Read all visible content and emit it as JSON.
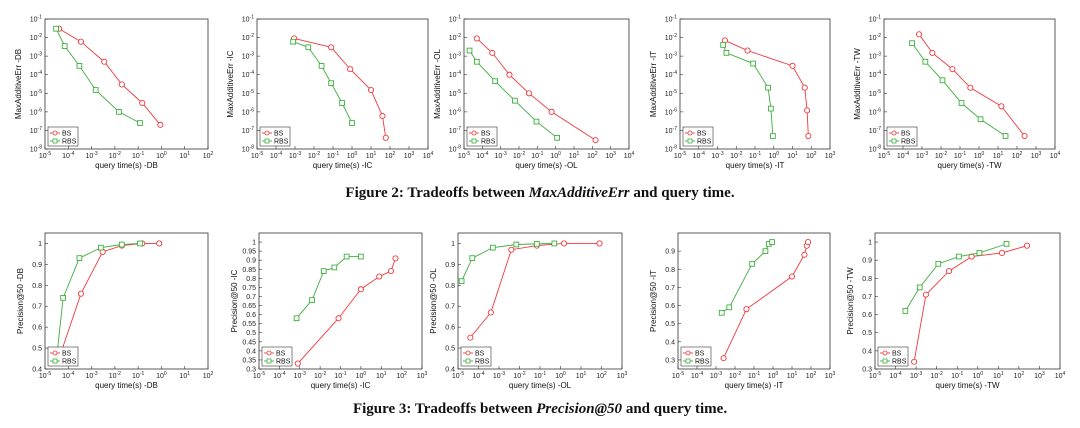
{
  "figure2": {
    "caption_prefix": "Figure 2: Tradeoffs between ",
    "caption_em": "MaxAdditiveErr",
    "caption_suffix": " and query time.",
    "charts": [
      {
        "type": "line",
        "xlog": true,
        "ylog": true,
        "xlim": [
          -5,
          2
        ],
        "ylim": [
          -8,
          -1
        ],
        "xlabel": "query time(s) -DB",
        "ylabel": "MaxAdditiveErr -DB",
        "xticks": [
          "10^-5",
          "10^-4",
          "10^-3",
          "10^-2",
          "10^-1",
          "10^0",
          "10^1",
          "10^2"
        ],
        "yticks": [
          "10^-8",
          "10^-7",
          "10^-6",
          "10^-5",
          "10^-4",
          "10^-3",
          "10^-2",
          "10^-1"
        ],
        "legend": [
          "BS",
          "RBS"
        ],
        "series": [
          {
            "name": "BS",
            "color": "#f0393c",
            "marker": "circle",
            "x": [
              4e-05,
              0.00035,
              0.0035,
              0.02,
              0.15,
              0.9
            ],
            "y": [
              0.03,
              0.006,
              0.0005,
              3e-05,
              3e-06,
              2e-07
            ]
          },
          {
            "name": "RBS",
            "color": "#3fae3f",
            "marker": "square",
            "x": [
              3e-05,
              7e-05,
              0.0003,
              0.0015,
              0.015,
              0.12
            ],
            "y": [
              0.03,
              0.0035,
              0.0003,
              1.5e-05,
              1e-06,
              2.5e-07
            ]
          }
        ]
      },
      {
        "type": "line",
        "xlog": true,
        "ylog": true,
        "xlim": [
          -5,
          4
        ],
        "ylim": [
          -8,
          -1
        ],
        "xlabel": "query time(s) -IC",
        "ylabel": "MaxAdditiveErr -IC",
        "xticks": [
          "10^-5",
          "10^-4",
          "10^-3",
          "10^-2",
          "10^-1",
          "10^0",
          "10^1",
          "10^2",
          "10^3",
          "10^4"
        ],
        "yticks": [
          "10^-8",
          "10^-7",
          "10^-6",
          "10^-5",
          "10^-4",
          "10^-3",
          "10^-2",
          "10^-1"
        ],
        "legend": [
          "BS",
          "RBS"
        ],
        "series": [
          {
            "name": "BS",
            "color": "#f0393c",
            "marker": "circle",
            "x": [
              0.0009,
              0.08,
              0.8,
              10,
              40,
              60
            ],
            "y": [
              0.009,
              0.003,
              0.0002,
              1.5e-05,
              6e-07,
              4e-08
            ]
          },
          {
            "name": "RBS",
            "color": "#3fae3f",
            "marker": "square",
            "x": [
              0.0008,
              0.005,
              0.025,
              0.08,
              0.3,
              1
            ],
            "y": [
              0.006,
              0.003,
              0.0003,
              3.5e-05,
              3e-06,
              2.5e-07
            ]
          }
        ]
      },
      {
        "type": "line",
        "xlog": true,
        "ylog": true,
        "xlim": [
          -5,
          4
        ],
        "ylim": [
          -8,
          -1
        ],
        "xlabel": "query time(s) -OL",
        "ylabel": "MaxAdditiveErr -OL",
        "xticks": [
          "10^-5",
          "10^-4",
          "10^-3",
          "10^-2",
          "10^-1",
          "10^0",
          "10^1",
          "10^2",
          "10^3",
          "10^4"
        ],
        "yticks": [
          "10^-8",
          "10^-7",
          "10^-6",
          "10^-5",
          "10^-4",
          "10^-3",
          "10^-2",
          "10^-1"
        ],
        "legend": [
          "BS",
          "RBS"
        ],
        "series": [
          {
            "name": "BS",
            "color": "#f0393c",
            "marker": "circle",
            "x": [
              5e-05,
              0.00035,
              0.003,
              0.035,
              0.6,
              150
            ],
            "y": [
              0.009,
              0.0015,
              0.0001,
              1e-05,
              1e-06,
              3e-08
            ]
          },
          {
            "name": "RBS",
            "color": "#3fae3f",
            "marker": "square",
            "x": [
              2e-05,
              5e-05,
              0.0005,
              0.006,
              0.09,
              1.2
            ],
            "y": [
              0.002,
              0.0005,
              4.5e-05,
              4e-06,
              3e-07,
              4e-08
            ]
          }
        ]
      },
      {
        "type": "line",
        "xlog": true,
        "ylog": true,
        "xlim": [
          -5,
          3
        ],
        "ylim": [
          -8,
          -1
        ],
        "xlabel": "query time(s) -IT",
        "ylabel": "MaxAdditiveErr -IT",
        "xticks": [
          "10^-5",
          "10^-4",
          "10^-3",
          "10^-2",
          "10^-1",
          "10^0",
          "10^1",
          "10^2",
          "10^3"
        ],
        "yticks": [
          "10^-8",
          "10^-7",
          "10^-6",
          "10^-5",
          "10^-4",
          "10^-3",
          "10^-2",
          "10^-1"
        ],
        "legend": [
          "BS",
          "RBS"
        ],
        "series": [
          {
            "name": "BS",
            "color": "#f0393c",
            "marker": "circle",
            "x": [
              0.0025,
              0.04,
              10,
              45,
              60,
              70
            ],
            "y": [
              0.007,
              0.002,
              0.0003,
              2e-05,
              1.2e-06,
              5e-08
            ]
          },
          {
            "name": "RBS",
            "color": "#3fae3f",
            "marker": "square",
            "x": [
              0.002,
              0.003,
              0.08,
              0.5,
              0.7,
              0.9
            ],
            "y": [
              0.004,
              0.0015,
              0.0004,
              2e-05,
              1.5e-06,
              5e-08
            ]
          }
        ]
      },
      {
        "type": "line",
        "xlog": true,
        "ylog": true,
        "xlim": [
          -5,
          4
        ],
        "ylim": [
          -8,
          -1
        ],
        "xlabel": "query time(s) -TW",
        "ylabel": "MaxAdditiveErr -TW",
        "xticks": [
          "10^-5",
          "10^-4",
          "10^-3",
          "10^-2",
          "10^-1",
          "10^0",
          "10^1",
          "10^2",
          "10^3",
          "10^4"
        ],
        "yticks": [
          "10^-8",
          "10^-7",
          "10^-6",
          "10^-5",
          "10^-4",
          "10^-3",
          "10^-2",
          "10^-1"
        ],
        "legend": [
          "BS",
          "RBS"
        ],
        "series": [
          {
            "name": "BS",
            "color": "#f0393c",
            "marker": "circle",
            "x": [
              0.0007,
              0.0035,
              0.04,
              0.35,
              15,
              250
            ],
            "y": [
              0.015,
              0.0015,
              0.0002,
              2e-05,
              2e-06,
              5e-08
            ]
          },
          {
            "name": "RBS",
            "color": "#3fae3f",
            "marker": "square",
            "x": [
              0.0003,
              0.0015,
              0.012,
              0.12,
              1.2,
              25
            ],
            "y": [
              0.005,
              0.0005,
              5e-05,
              3e-06,
              4e-07,
              5e-08
            ]
          }
        ]
      }
    ]
  },
  "figure3": {
    "caption_prefix": "Figure 3: Tradeoffs between ",
    "caption_em": "Precision@50",
    "caption_suffix": " and query time.",
    "charts": [
      {
        "type": "line",
        "xlog": true,
        "ylog": false,
        "xlim": [
          -5,
          2
        ],
        "ylim": [
          0.4,
          1.05
        ],
        "xlabel": "query time(s) -DB",
        "ylabel": "Precision@50 -DB",
        "xticks": [
          "10^-5",
          "10^-4",
          "10^-3",
          "10^-2",
          "10^-1",
          "10^0",
          "10^1",
          "10^2"
        ],
        "yticks": [
          "0.4",
          "0.5",
          "0.6",
          "0.7",
          "0.8",
          "0.9",
          "1"
        ],
        "legend": [
          "BS",
          "RBS"
        ],
        "series": [
          {
            "name": "BS",
            "color": "#f0393c",
            "marker": "circle",
            "x": [
              4e-05,
              0.00035,
              0.003,
              0.02,
              0.15,
              0.8
            ],
            "y": [
              0.45,
              0.76,
              0.96,
              0.99,
              1.0,
              1.0
            ]
          },
          {
            "name": "RBS",
            "color": "#3fae3f",
            "marker": "square",
            "x": [
              3e-05,
              6e-05,
              0.0003,
              0.0025,
              0.02,
              0.12
            ],
            "y": [
              0.43,
              0.74,
              0.93,
              0.98,
              0.995,
              1.0
            ]
          }
        ]
      },
      {
        "type": "line",
        "xlog": true,
        "ylog": false,
        "xlim": [
          -5,
          3
        ],
        "ylim": [
          0.3,
          1.05
        ],
        "xlabel": "query time(s) -IC",
        "ylabel": "Precision@50 -IC",
        "xticks": [
          "10^-5",
          "10^-4",
          "10^-3",
          "10^-2",
          "10^-1",
          "10^0",
          "10^1",
          "10^2",
          "10^3"
        ],
        "yticks": [
          "0.3",
          "0.35",
          "0.4",
          "0.45",
          "0.5",
          "0.55",
          "0.6",
          "0.65",
          "0.7",
          "0.75",
          "0.8",
          "0.85",
          "0.9",
          "0.95",
          "1"
        ],
        "legend": [
          "BS",
          "RBS"
        ],
        "series": [
          {
            "name": "BS",
            "color": "#f0393c",
            "marker": "circle",
            "x": [
              0.0008,
              0.08,
              1,
              8,
              30,
              50
            ],
            "y": [
              0.33,
              0.58,
              0.74,
              0.81,
              0.84,
              0.91
            ]
          },
          {
            "name": "RBS",
            "color": "#3fae3f",
            "marker": "square",
            "x": [
              0.0007,
              0.004,
              0.015,
              0.05,
              0.2,
              1
            ],
            "y": [
              0.58,
              0.68,
              0.84,
              0.86,
              0.92,
              0.92
            ]
          }
        ]
      },
      {
        "type": "line",
        "xlog": true,
        "ylog": false,
        "xlim": [
          -5,
          3
        ],
        "ylim": [
          0.4,
          1.05
        ],
        "xlabel": "query time(s) -OL",
        "ylabel": "Precision@50 -OL",
        "xticks": [
          "10^-5",
          "10^-4",
          "10^-3",
          "10^-2",
          "10^-1",
          "10^0",
          "10^1",
          "10^2",
          "10^3"
        ],
        "yticks": [
          "0.4",
          "0.5",
          "0.6",
          "0.7",
          "0.8",
          "0.9",
          "1"
        ],
        "legend": [
          "BS",
          "RBS"
        ],
        "series": [
          {
            "name": "BS",
            "color": "#f0393c",
            "marker": "circle",
            "x": [
              4e-05,
              0.0004,
              0.004,
              0.07,
              1.5,
              80
            ],
            "y": [
              0.55,
              0.67,
              0.97,
              0.99,
              1.0,
              1.0
            ]
          },
          {
            "name": "RBS",
            "color": "#3fae3f",
            "marker": "square",
            "x": [
              1.5e-05,
              5e-05,
              0.0005,
              0.007,
              0.07,
              0.5
            ],
            "y": [
              0.82,
              0.93,
              0.98,
              0.995,
              0.998,
              1.0
            ]
          }
        ]
      },
      {
        "type": "line",
        "xlog": true,
        "ylog": false,
        "xlim": [
          -5,
          3
        ],
        "ylim": [
          0.25,
          1.0
        ],
        "xlabel": "query time(s) -IT",
        "ylabel": "Precision@50 -IT",
        "xticks": [
          "10^-5",
          "10^-4",
          "10^-3",
          "10^-2",
          "10^-1",
          "10^0",
          "10^1",
          "10^2",
          "10^3"
        ],
        "yticks": [
          "0.3",
          "0.4",
          "0.5",
          "0.6",
          "0.7",
          "0.8",
          "0.9"
        ],
        "legend": [
          "BS",
          "RBS"
        ],
        "series": [
          {
            "name": "BS",
            "color": "#f0393c",
            "marker": "circle",
            "x": [
              0.0025,
              0.04,
              10,
              45,
              60,
              70
            ],
            "y": [
              0.31,
              0.58,
              0.76,
              0.88,
              0.93,
              0.95
            ]
          },
          {
            "name": "RBS",
            "color": "#3fae3f",
            "marker": "square",
            "x": [
              0.002,
              0.005,
              0.08,
              0.4,
              0.6,
              0.9
            ],
            "y": [
              0.56,
              0.59,
              0.83,
              0.9,
              0.94,
              0.95
            ]
          }
        ]
      },
      {
        "type": "line",
        "xlog": true,
        "ylog": false,
        "xlim": [
          -5,
          4
        ],
        "ylim": [
          0.3,
          1.05
        ],
        "xlabel": "query time(s) -TW",
        "ylabel": "Precision@50 -TW",
        "xticks": [
          "10^-5",
          "10^-4",
          "10^-3",
          "10^-2",
          "10^-1",
          "10^0",
          "10^1",
          "10^2",
          "10^3",
          "10^4"
        ],
        "yticks": [
          "0.3",
          "0.4",
          "0.5",
          "0.6",
          "0.7",
          "0.8",
          "0.9",
          "1"
        ],
        "legend": [
          "BS",
          "RBS"
        ],
        "series": [
          {
            "name": "BS",
            "color": "#f0393c",
            "marker": "circle",
            "x": [
              0.0008,
              0.003,
              0.04,
              0.5,
              15,
              250
            ],
            "y": [
              0.34,
              0.71,
              0.84,
              0.92,
              0.94,
              0.98
            ]
          },
          {
            "name": "RBS",
            "color": "#3fae3f",
            "marker": "square",
            "x": [
              0.0003,
              0.0015,
              0.012,
              0.12,
              1.2,
              25
            ],
            "y": [
              0.62,
              0.75,
              0.88,
              0.92,
              0.94,
              0.99
            ]
          }
        ]
      }
    ]
  },
  "chart_data": [
    {
      "ref": "figure2.charts.0"
    },
    {
      "ref": "figure2.charts.1"
    },
    {
      "ref": "figure2.charts.2"
    },
    {
      "ref": "figure2.charts.3"
    },
    {
      "ref": "figure2.charts.4"
    },
    {
      "ref": "figure3.charts.0"
    },
    {
      "ref": "figure3.charts.1"
    },
    {
      "ref": "figure3.charts.2"
    },
    {
      "ref": "figure3.charts.3"
    },
    {
      "ref": "figure3.charts.4"
    }
  ]
}
